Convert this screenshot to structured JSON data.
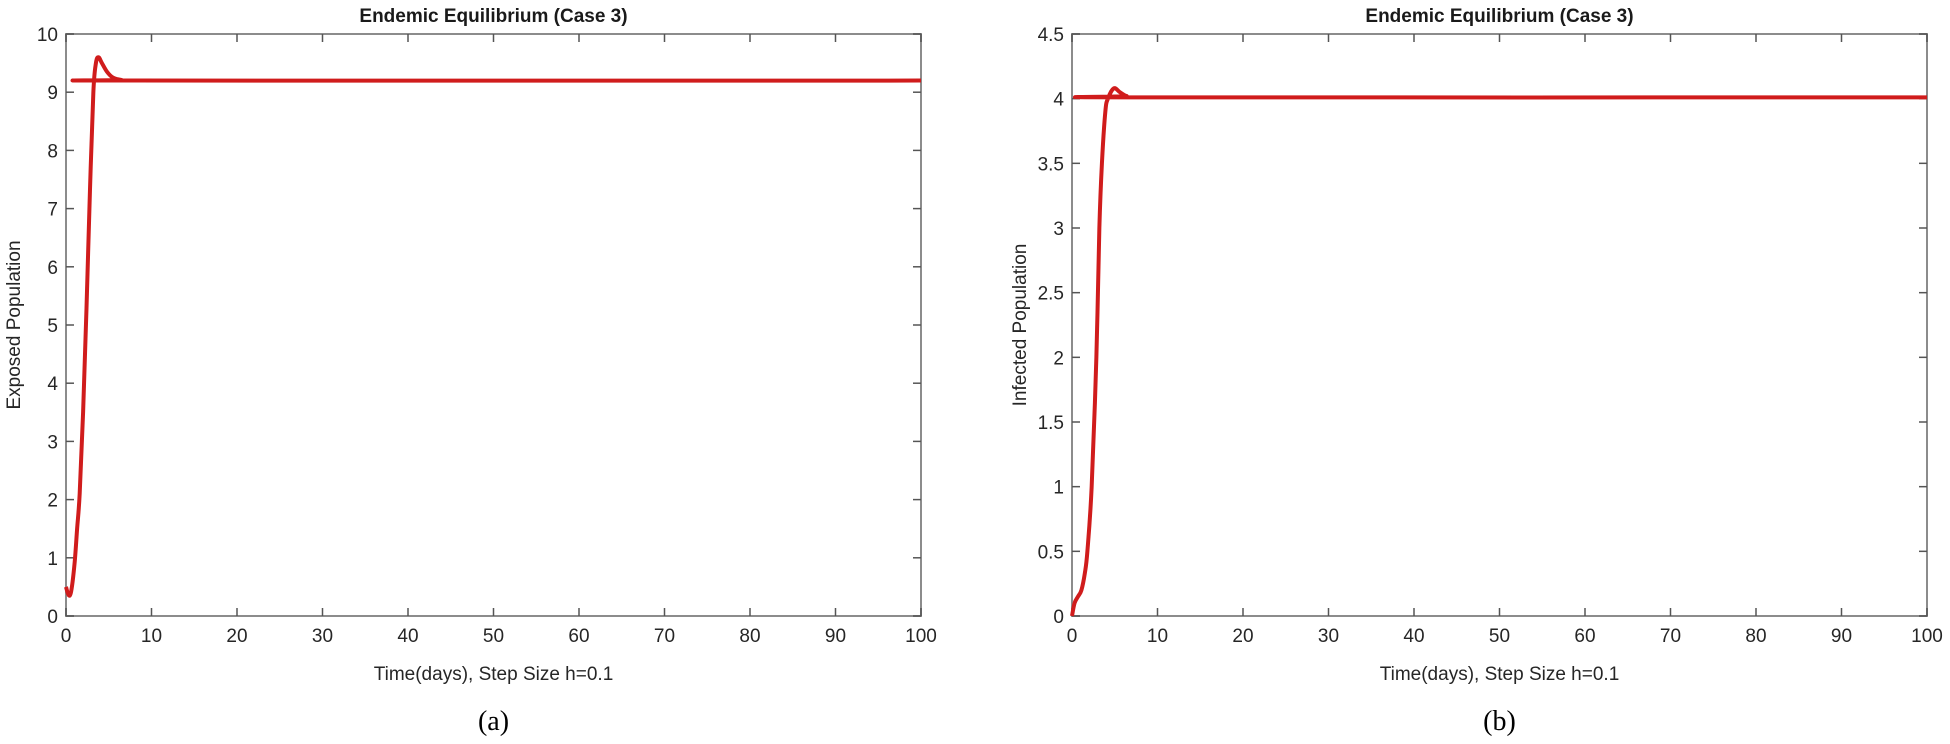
{
  "chart_data": [
    {
      "type": "line",
      "panel_label": "(a)",
      "title": "Endemic Equilibrium (Case 3)",
      "xlabel": "Time(days), Step Size h=0.1",
      "ylabel": "Exposed Population",
      "xlim": [
        0,
        100
      ],
      "ylim": [
        0,
        10
      ],
      "xticks": [
        0,
        10,
        20,
        30,
        40,
        50,
        60,
        70,
        80,
        90,
        100
      ],
      "yticks": [
        0,
        1,
        2,
        3,
        4,
        5,
        6,
        7,
        8,
        9,
        10
      ],
      "ytick_labels": [
        "0",
        "1",
        "2",
        "3",
        "4",
        "5",
        "6",
        "7",
        "8",
        "9",
        "10"
      ],
      "grid": false,
      "color": "#d01c1c",
      "x": [
        0,
        0.3,
        0.6,
        1,
        1.3,
        1.6,
        2,
        2.4,
        2.8,
        3.2,
        3.5,
        3.8,
        4.2,
        4.8,
        5.5,
        6.5,
        8,
        100
      ],
      "y": [
        0.5,
        0.36,
        0.42,
        0.9,
        1.5,
        2.1,
        3.5,
        5.3,
        7.3,
        9.0,
        9.5,
        9.6,
        9.5,
        9.35,
        9.25,
        9.21,
        9.2,
        9.2
      ]
    },
    {
      "type": "line",
      "panel_label": "(b)",
      "title": "Endemic Equilibrium (Case 3)",
      "xlabel": "Time(days), Step Size h=0.1",
      "ylabel": "Infected Population",
      "xlim": [
        0,
        100
      ],
      "ylim": [
        0,
        4.5
      ],
      "xticks": [
        0,
        10,
        20,
        30,
        40,
        50,
        60,
        70,
        80,
        90,
        100
      ],
      "yticks": [
        0,
        0.5,
        1,
        1.5,
        2,
        2.5,
        3,
        3.5,
        4,
        4.5
      ],
      "ytick_labels": [
        "0",
        "0.5",
        "1",
        "1.5",
        "2",
        "2.5",
        "3",
        "3.5",
        "4",
        "4.5"
      ],
      "grid": false,
      "color": "#d01c1c",
      "x": [
        0,
        0.3,
        0.7,
        1.1,
        1.5,
        1.8,
        2.3,
        2.85,
        3.2,
        3.5,
        3.9,
        4.2,
        4.9,
        5.6,
        6.4,
        7.5,
        100
      ],
      "y": [
        0,
        0.1,
        0.15,
        0.2,
        0.33,
        0.5,
        1.0,
        2.0,
        3.0,
        3.5,
        3.9,
        4.0,
        4.08,
        4.05,
        4.02,
        4.01,
        4.01
      ]
    }
  ]
}
